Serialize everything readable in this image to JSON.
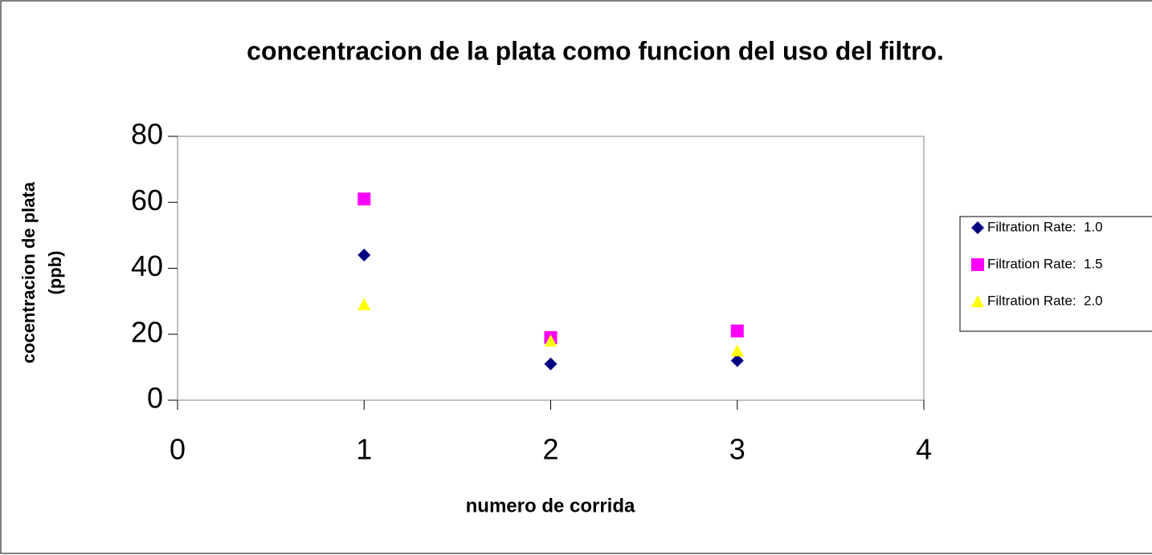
{
  "chart_data": {
    "type": "scatter",
    "title": "concentracion de la plata como funcion del uso del filtro.",
    "xlabel": "numero de corrida",
    "ylabel": [
      "cocentracion de plata",
      "(ppb)"
    ],
    "xlim": [
      0,
      4
    ],
    "xticks": [
      0,
      1,
      2,
      3,
      4
    ],
    "ylim": [
      0,
      80
    ],
    "yticks": [
      0,
      20,
      40,
      60,
      80
    ],
    "grid": false,
    "legend": "right",
    "series": [
      {
        "name": "Filtration Rate:  1.0",
        "color": "#000080",
        "marker": "diamond",
        "x": [
          1,
          2,
          3
        ],
        "values": [
          44,
          11,
          12
        ]
      },
      {
        "name": "Filtration Rate:  1.5",
        "color": "#ff00ff",
        "marker": "square",
        "x": [
          1,
          2,
          3
        ],
        "values": [
          61,
          19,
          21
        ]
      },
      {
        "name": "Filtration Rate:  2.0",
        "color": "#ffff00",
        "marker": "triangle",
        "x": [
          1,
          2,
          3
        ],
        "values": [
          29,
          18,
          15
        ]
      }
    ]
  }
}
